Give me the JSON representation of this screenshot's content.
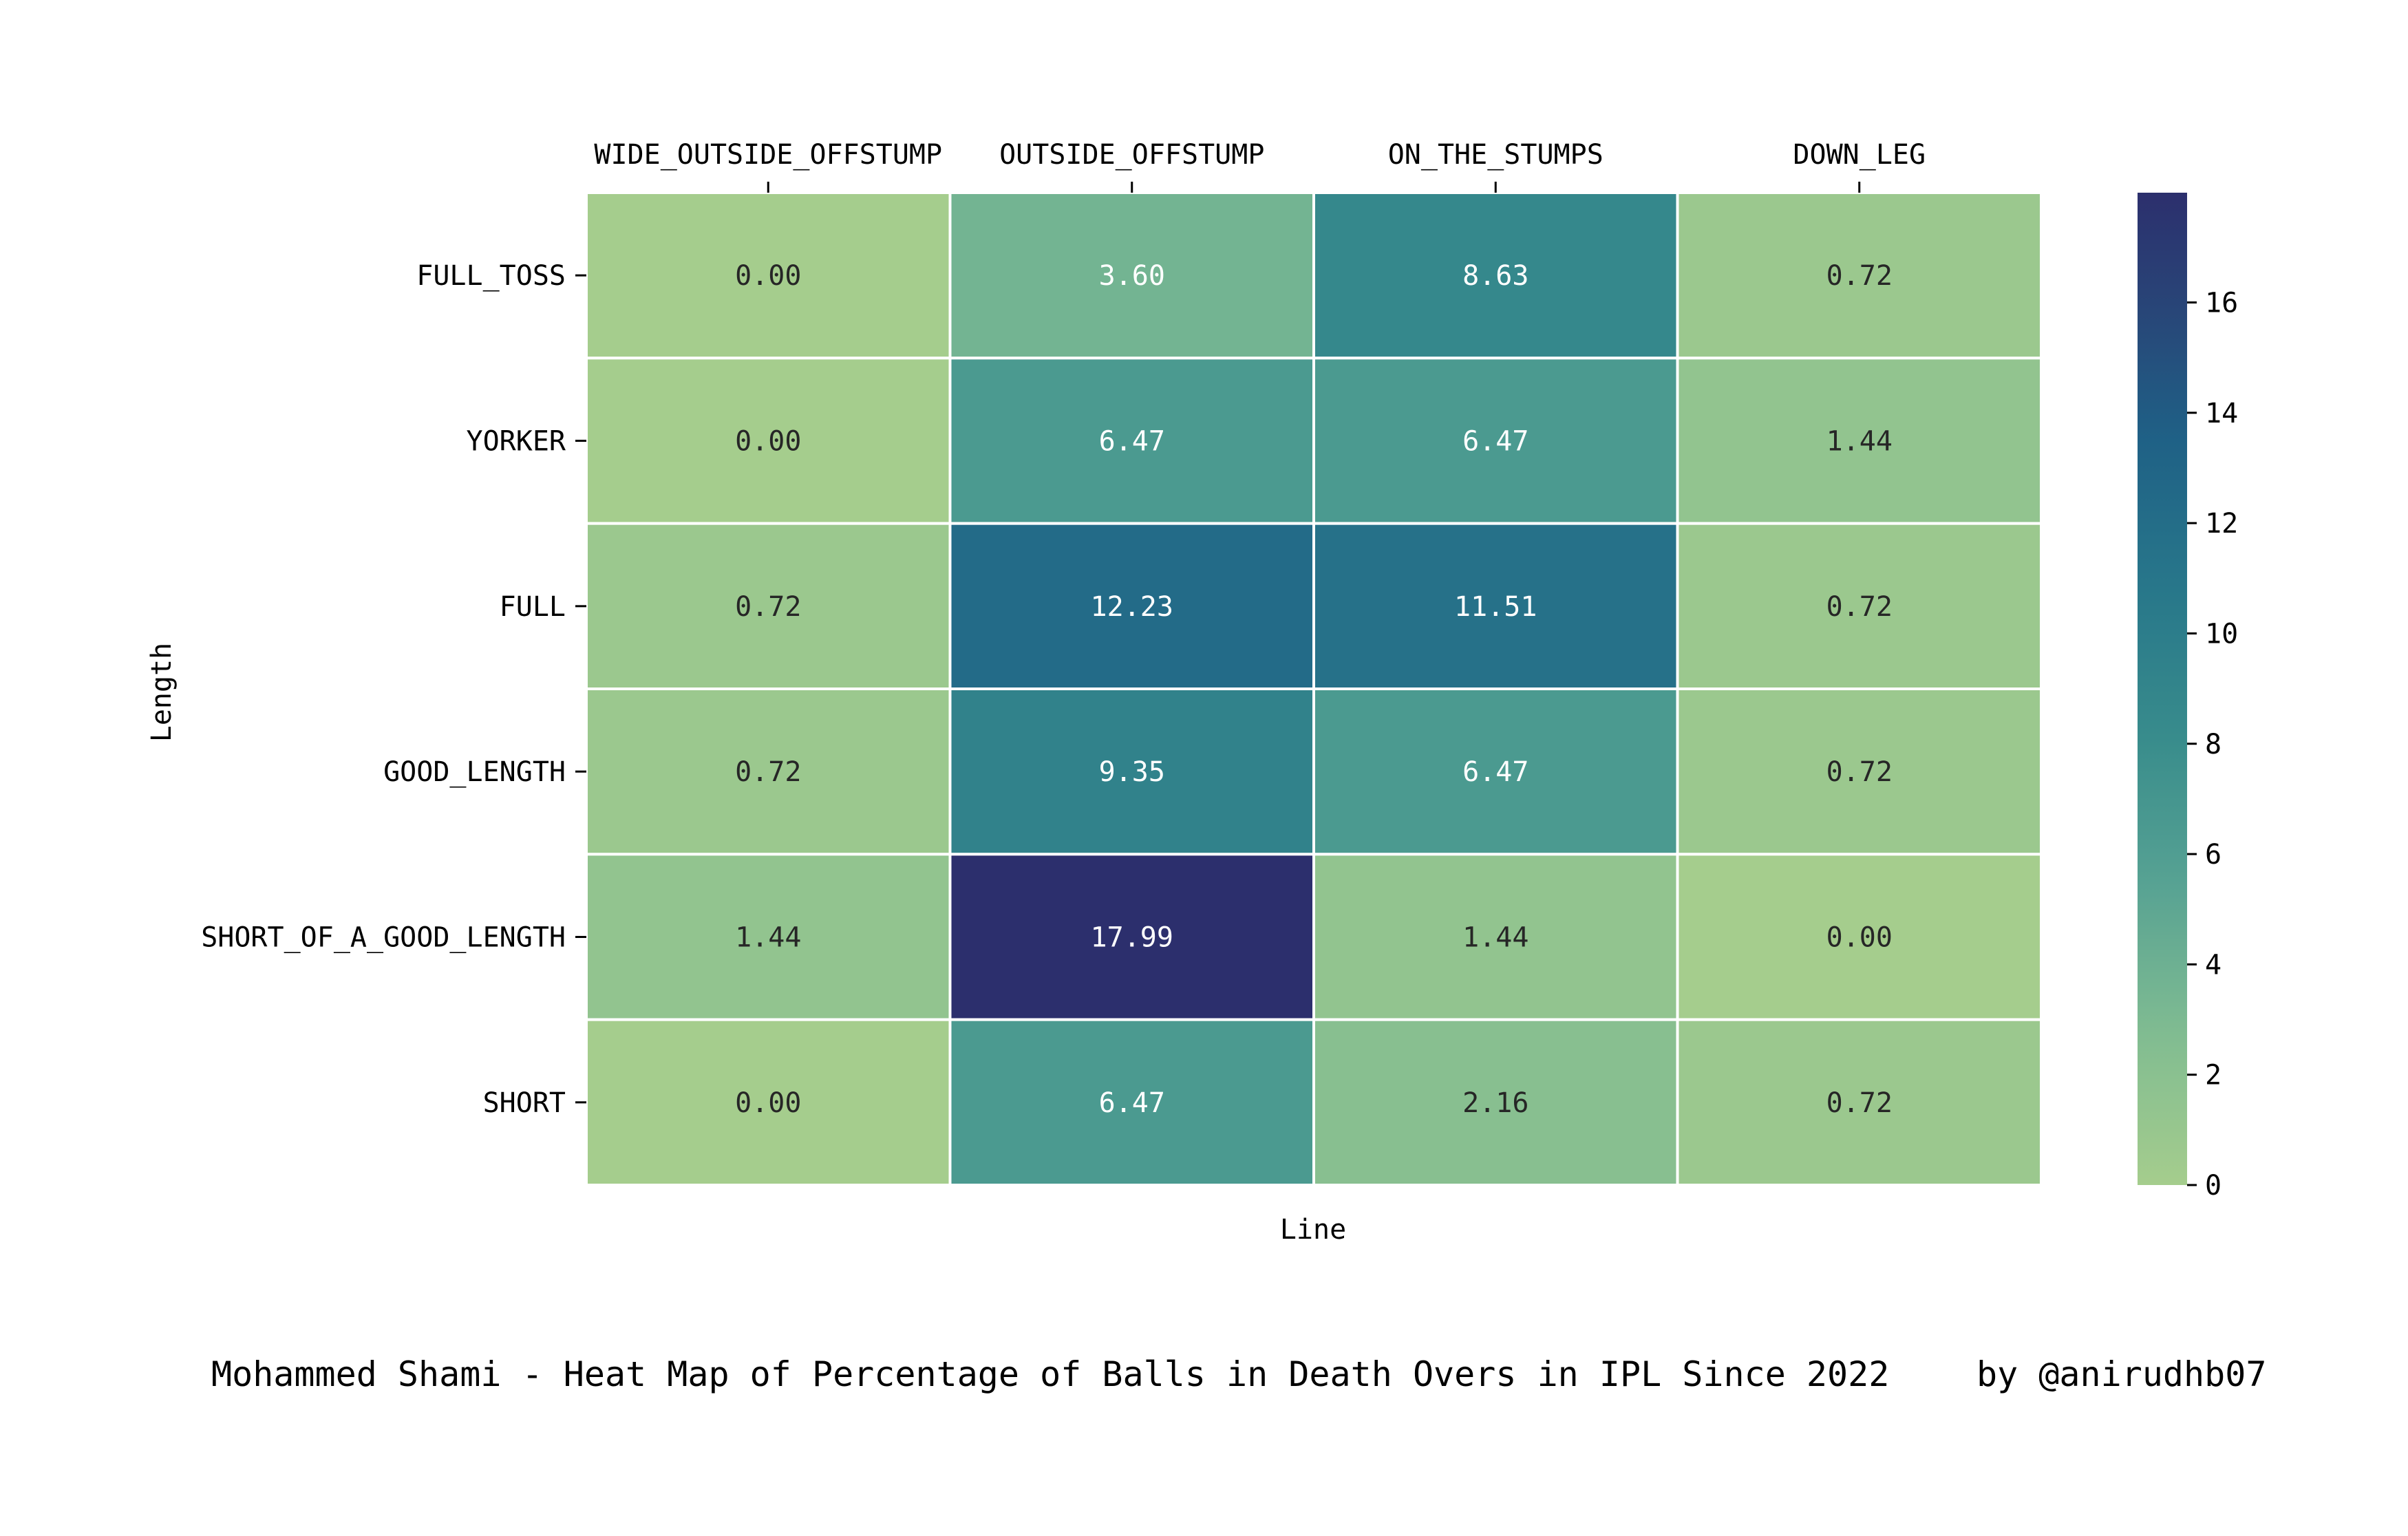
{
  "chart_data": {
    "type": "heatmap",
    "title": "Mohammed Shami - Heat Map of Percentage of Balls in Death Overs in IPL Since 2022",
    "credit": "by @anirudhb07",
    "xlabel": "Line",
    "ylabel": "Length",
    "x_categories": [
      "WIDE_OUTSIDE_OFFSTUMP",
      "OUTSIDE_OFFSTUMP",
      "ON_THE_STUMPS",
      "DOWN_LEG"
    ],
    "y_categories": [
      "FULL_TOSS",
      "YORKER",
      "FULL",
      "GOOD_LENGTH",
      "SHORT_OF_A_GOOD_LENGTH",
      "SHORT"
    ],
    "values": [
      [
        0.0,
        3.6,
        8.63,
        0.72
      ],
      [
        0.0,
        6.47,
        6.47,
        1.44
      ],
      [
        0.72,
        12.23,
        11.51,
        0.72
      ],
      [
        0.72,
        9.35,
        6.47,
        0.72
      ],
      [
        1.44,
        17.99,
        1.44,
        0.0
      ],
      [
        0.0,
        6.47,
        2.16,
        0.72
      ]
    ],
    "value_labels": [
      [
        "0.00",
        "3.60",
        "8.63",
        "0.72"
      ],
      [
        "0.00",
        "6.47",
        "6.47",
        "1.44"
      ],
      [
        "0.72",
        "12.23",
        "11.51",
        "0.72"
      ],
      [
        "0.72",
        "9.35",
        "6.47",
        "0.72"
      ],
      [
        "1.44",
        "17.99",
        "1.44",
        "0.00"
      ],
      [
        "0.00",
        "6.47",
        "2.16",
        "0.72"
      ]
    ],
    "colorbar": {
      "range": [
        0,
        17.99
      ],
      "ticks": [
        0,
        2,
        4,
        6,
        8,
        10,
        12,
        14,
        16
      ],
      "tick_labels": [
        "0",
        "2",
        "4",
        "6",
        "8",
        "10",
        "12",
        "14",
        "16"
      ],
      "colormap": "crest",
      "low_color": "#a5cd8d",
      "high_color": "#2c2f6d"
    },
    "x_tick_position": "top",
    "grid": false,
    "cell_border_color": "#ffffff"
  }
}
